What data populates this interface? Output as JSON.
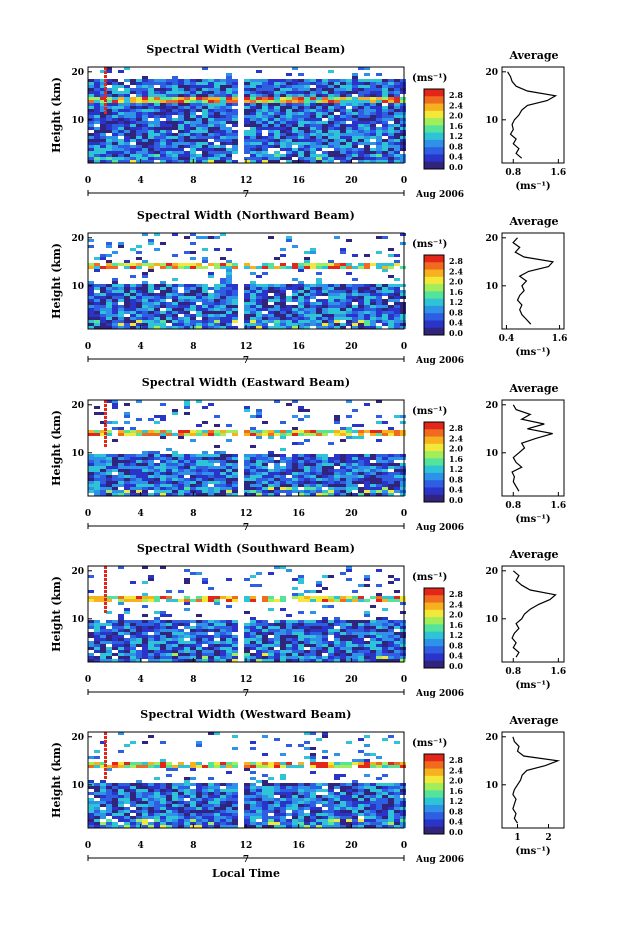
{
  "x_label": "Local Time",
  "colorbar": {
    "unit": "(ms⁻¹)",
    "ticks": [
      "2.8",
      "2.4",
      "2.0",
      "1.6",
      "1.2",
      "0.8",
      "0.4",
      "0.0"
    ],
    "colors": [
      "#e32619",
      "#f06b1f",
      "#f7b11e",
      "#f1e83a",
      "#a2ed5c",
      "#53e39a",
      "#2ec3d7",
      "#2e92e9",
      "#2e5fe2",
      "#2a34c9",
      "#31247d"
    ]
  },
  "chart_data": [
    {
      "type": "heatmap",
      "title": "Spectral Width (Vertical Beam)",
      "ylabel": "Height (km)",
      "x_ticks": [
        "0",
        "4",
        "8",
        "12",
        "16",
        "20",
        "0"
      ],
      "date_label": "7",
      "date_right": "Aug 2006",
      "y_ticks": [
        "20",
        "10"
      ],
      "ylim": [
        1,
        21
      ],
      "profile": {
        "title": "Average",
        "x_ticks": [
          "0.8",
          "1.6"
        ],
        "xlim": [
          0.6,
          1.7
        ],
        "xlabel": "(ms⁻¹)",
        "heights": [
          2,
          3,
          4,
          5,
          6,
          7,
          8,
          9,
          10,
          11,
          12,
          13,
          14,
          15,
          16,
          17,
          18,
          19,
          20
        ],
        "values": [
          0.95,
          0.85,
          0.9,
          0.8,
          0.85,
          0.75,
          0.8,
          0.78,
          0.82,
          0.9,
          0.95,
          1.05,
          1.4,
          1.55,
          1.05,
          0.85,
          0.78,
          0.75,
          0.7
        ]
      }
    },
    {
      "type": "heatmap",
      "title": "Spectral Width (Northward Beam)",
      "ylabel": "Height (km)",
      "x_ticks": [
        "0",
        "4",
        "8",
        "12",
        "16",
        "20",
        "0"
      ],
      "date_label": "7",
      "date_right": "Aug 2006",
      "y_ticks": [
        "20",
        "10"
      ],
      "ylim": [
        1,
        21
      ],
      "profile": {
        "title": "Average",
        "x_ticks": [
          "0.4",
          "1.6"
        ],
        "xlim": [
          0.3,
          1.7
        ],
        "xlabel": "(ms⁻¹)",
        "heights": [
          2,
          3,
          4,
          5,
          6,
          7,
          8,
          9,
          10,
          11,
          12,
          13,
          14,
          15,
          16,
          17,
          18,
          19,
          20
        ],
        "values": [
          0.95,
          0.85,
          0.75,
          0.7,
          0.75,
          0.65,
          0.7,
          0.8,
          0.75,
          0.85,
          0.7,
          0.9,
          1.35,
          1.45,
          0.8,
          0.6,
          0.7,
          0.55,
          0.65
        ]
      }
    },
    {
      "type": "heatmap",
      "title": "Spectral Width (Eastward Beam)",
      "ylabel": "Height (km)",
      "x_ticks": [
        "0",
        "4",
        "8",
        "12",
        "16",
        "20",
        "0"
      ],
      "date_label": "7",
      "date_right": "Aug 2006",
      "y_ticks": [
        "20",
        "10"
      ],
      "ylim": [
        1,
        21
      ],
      "profile": {
        "title": "Average",
        "x_ticks": [
          "0.8",
          "1.6"
        ],
        "xlim": [
          0.6,
          1.7
        ],
        "xlabel": "(ms⁻¹)",
        "heights": [
          2,
          3,
          4,
          5,
          6,
          7,
          8,
          9,
          10,
          11,
          12,
          13,
          14,
          15,
          16,
          17,
          18,
          19,
          20
        ],
        "values": [
          0.9,
          0.85,
          0.8,
          0.82,
          0.78,
          0.95,
          0.85,
          0.8,
          0.9,
          1.0,
          0.95,
          1.2,
          1.5,
          1.05,
          1.35,
          0.95,
          1.1,
          0.85,
          0.8
        ]
      }
    },
    {
      "type": "heatmap",
      "title": "Spectral Width (Southward Beam)",
      "ylabel": "Height (km)",
      "x_ticks": [
        "0",
        "4",
        "8",
        "12",
        "16",
        "20",
        "0"
      ],
      "date_label": "7",
      "date_right": "Aug 2006",
      "y_ticks": [
        "20",
        "10"
      ],
      "ylim": [
        1,
        21
      ],
      "profile": {
        "title": "Average",
        "x_ticks": [
          "0.8",
          "1.6"
        ],
        "xlim": [
          0.6,
          1.7
        ],
        "xlabel": "(ms⁻¹)",
        "heights": [
          2,
          3,
          4,
          5,
          6,
          7,
          8,
          9,
          10,
          11,
          12,
          13,
          14,
          15,
          16,
          17,
          18,
          19,
          20
        ],
        "values": [
          0.85,
          0.9,
          0.8,
          0.85,
          0.78,
          0.82,
          0.9,
          0.85,
          0.95,
          1.0,
          1.1,
          1.25,
          1.45,
          1.55,
          1.1,
          0.95,
          0.85,
          0.9,
          0.8
        ]
      }
    },
    {
      "type": "heatmap",
      "title": "Spectral Width (Westward Beam)",
      "ylabel": "Height (km)",
      "x_ticks": [
        "0",
        "4",
        "8",
        "12",
        "16",
        "20",
        "0"
      ],
      "date_label": "7",
      "date_right": "Aug 2006",
      "y_ticks": [
        "20",
        "10"
      ],
      "ylim": [
        1,
        21
      ],
      "profile": {
        "title": "Average",
        "x_ticks": [
          "1",
          "2"
        ],
        "xlim": [
          0.5,
          2.5
        ],
        "xlabel": "(ms⁻¹)",
        "heights": [
          2,
          3,
          4,
          5,
          6,
          7,
          8,
          9,
          10,
          11,
          12,
          13,
          14,
          15,
          16,
          17,
          18,
          19,
          20
        ],
        "values": [
          1.0,
          0.9,
          0.95,
          0.85,
          0.9,
          0.95,
          0.85,
          0.9,
          1.0,
          1.1,
          1.15,
          1.3,
          1.9,
          2.3,
          1.2,
          1.0,
          1.05,
          0.9,
          0.85
        ]
      }
    }
  ]
}
